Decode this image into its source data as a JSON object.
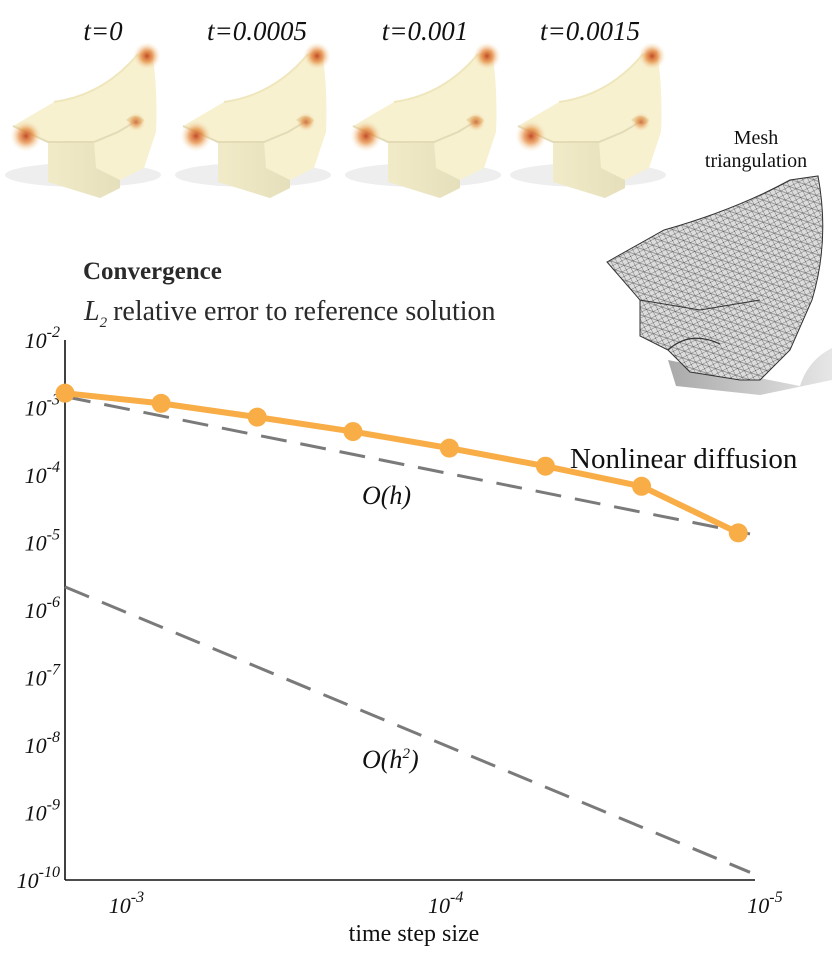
{
  "snapshots": {
    "labels": [
      "t=0",
      "t=0.0005",
      "t=0.001",
      "t=0.0015"
    ],
    "colors": {
      "base": "#f7f1d0",
      "shade": "#d8d2ae",
      "hot": "#c5471a",
      "warm": "#f2b97a"
    }
  },
  "mesh_label": [
    "Mesh",
    "triangulation"
  ],
  "chart_data": {
    "type": "line",
    "title": "Convergence",
    "subtitle_symbol": "L",
    "subtitle_sub": "2",
    "subtitle": "relative error to reference solution",
    "xlabel": "time step size",
    "x_scale": "log",
    "x_reversed": true,
    "y_scale": "log",
    "xlim": [
      0.00158,
      1.13e-05
    ],
    "ylim": [
      1e-10,
      0.01
    ],
    "x_ticks": [
      {
        "base": "10",
        "exp": "-3"
      },
      {
        "base": "10",
        "exp": "-4"
      },
      {
        "base": "10",
        "exp": "-5"
      }
    ],
    "y_ticks": [
      {
        "base": "10",
        "exp": "-2"
      },
      {
        "base": "10",
        "exp": "-3"
      },
      {
        "base": "10",
        "exp": "-4"
      },
      {
        "base": "10",
        "exp": "-5"
      },
      {
        "base": "10",
        "exp": "-6"
      },
      {
        "base": "10",
        "exp": "-7"
      },
      {
        "base": "10",
        "exp": "-8"
      },
      {
        "base": "10",
        "exp": "-9"
      },
      {
        "base": "10",
        "exp": "-10"
      }
    ],
    "grid": false,
    "series": [
      {
        "name": "Nonlinear diffusion",
        "color": "#f9ad47",
        "x": [
          0.00158,
          0.00079,
          0.000395,
          0.000198,
          9.88e-05,
          4.94e-05,
          2.47e-05,
          1.23e-05
        ],
        "y": [
          0.00163,
          0.00115,
          0.00072,
          0.00044,
          0.00025,
          0.000135,
          6.8e-05,
          1.39e-05
        ]
      }
    ],
    "references": [
      {
        "label": "O(h)",
        "color": "#7a7a7a",
        "x": [
          0.00158,
          1.13e-05
        ],
        "y": [
          0.00145,
          1.34e-05
        ]
      },
      {
        "label_main": "O(h",
        "label_sup": "2",
        "label_end": ")",
        "color": "#7a7a7a",
        "x": [
          0.00158,
          1.13e-05
        ],
        "y": [
          2.2e-06,
          1.3e-10
        ]
      }
    ]
  }
}
